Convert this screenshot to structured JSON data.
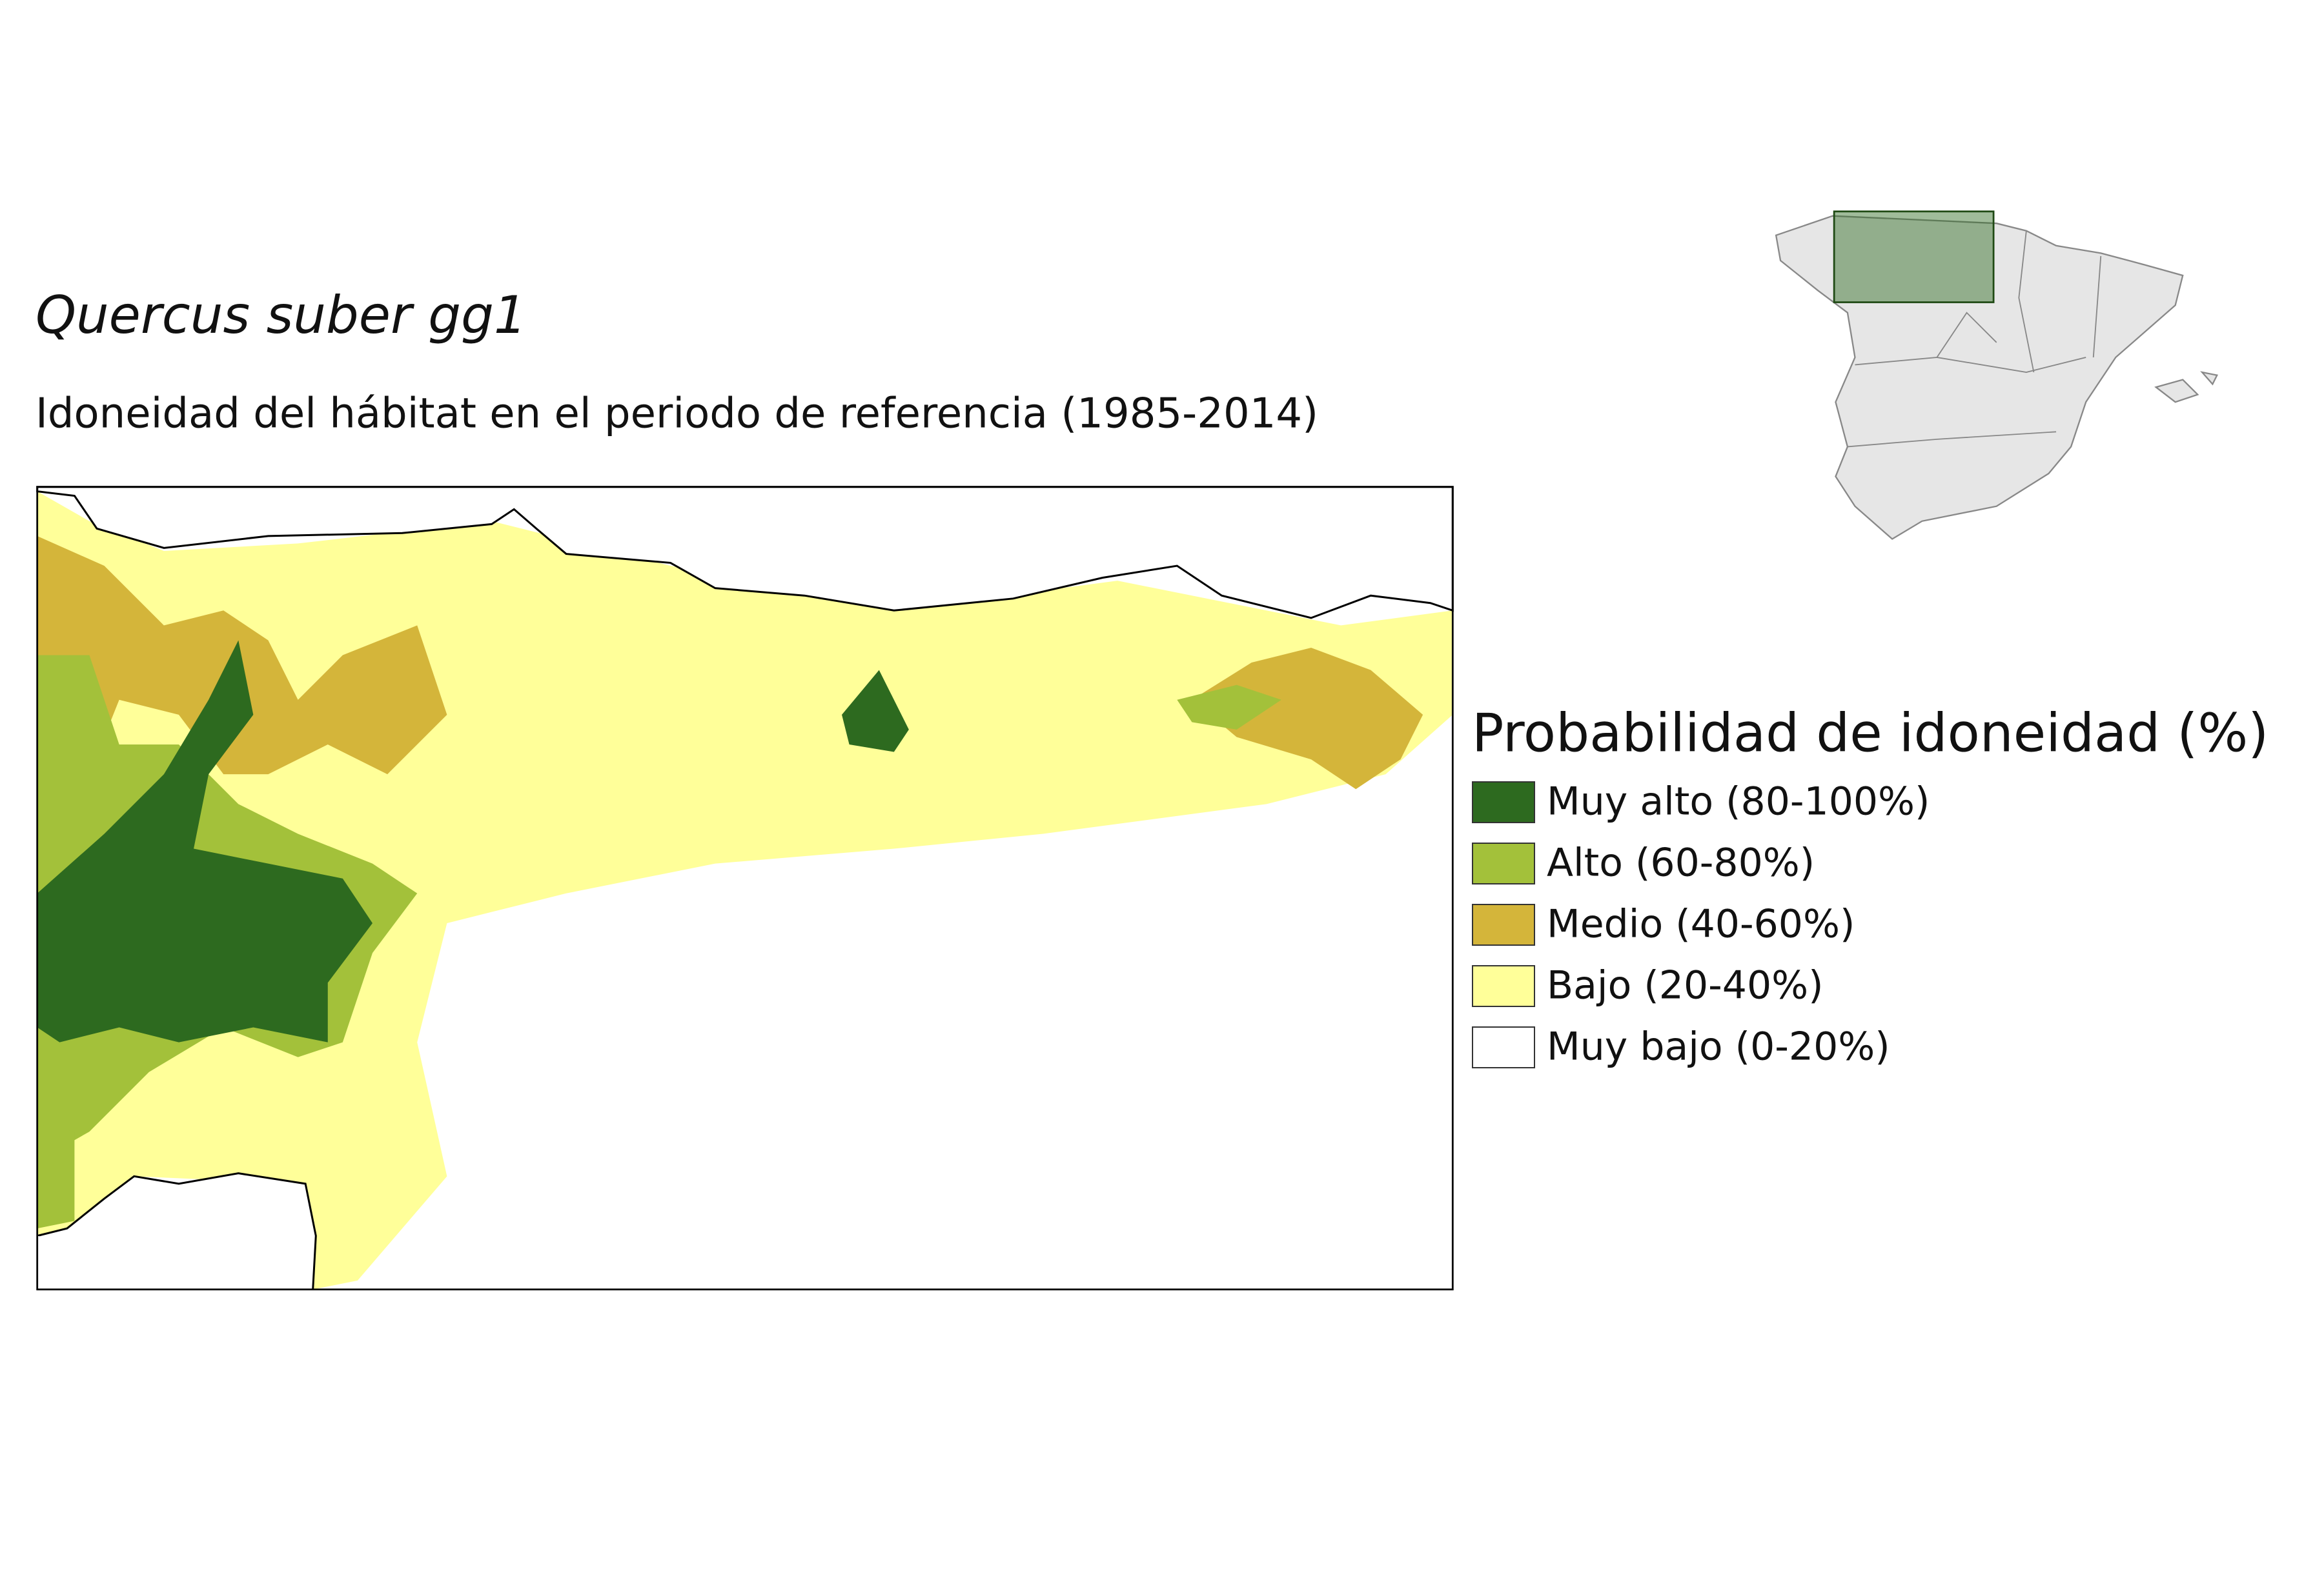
{
  "title": "Quercus suber gg1",
  "subtitle": "Idoneidad del hábitat en el periodo de referencia (1985-2014)",
  "legend": {
    "title": "Probabilidad de idoneidad (%)",
    "items": [
      {
        "label": "Muy alto (80-100%)",
        "color": "#2d6a1f"
      },
      {
        "label": "Alto (60-80%)",
        "color": "#a3c13a"
      },
      {
        "label": "Medio (40-60%)",
        "color": "#d4b53a"
      },
      {
        "label": "Bajo (20-40%)",
        "color": "#ffff99"
      },
      {
        "label": "Muy bajo (0-20%)",
        "color": "#ffffff"
      }
    ]
  }
}
